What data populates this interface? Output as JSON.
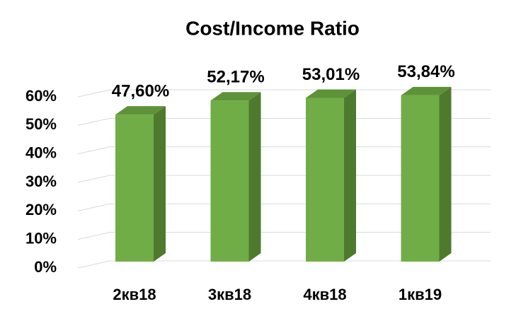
{
  "chart_data": {
    "type": "bar3d",
    "title": "Cost/Income Ratio",
    "categories": [
      "2кв18",
      "3кв18",
      "4кв18",
      "1кв19"
    ],
    "values": [
      47.6,
      52.17,
      53.01,
      53.84
    ],
    "value_labels": [
      "47,60%",
      "52,17%",
      "53,01%",
      "53,84%"
    ],
    "color": "#70ad47",
    "ylim": [
      0,
      60
    ],
    "yticks": [
      {
        "value": 0,
        "label": "0%"
      },
      {
        "value": 10,
        "label": "10%"
      },
      {
        "value": 20,
        "label": "20%"
      },
      {
        "value": 30,
        "label": "30%"
      },
      {
        "value": 40,
        "label": "40%"
      },
      {
        "value": 50,
        "label": "50%"
      },
      {
        "value": 60,
        "label": "60%"
      }
    ],
    "grid": true
  }
}
